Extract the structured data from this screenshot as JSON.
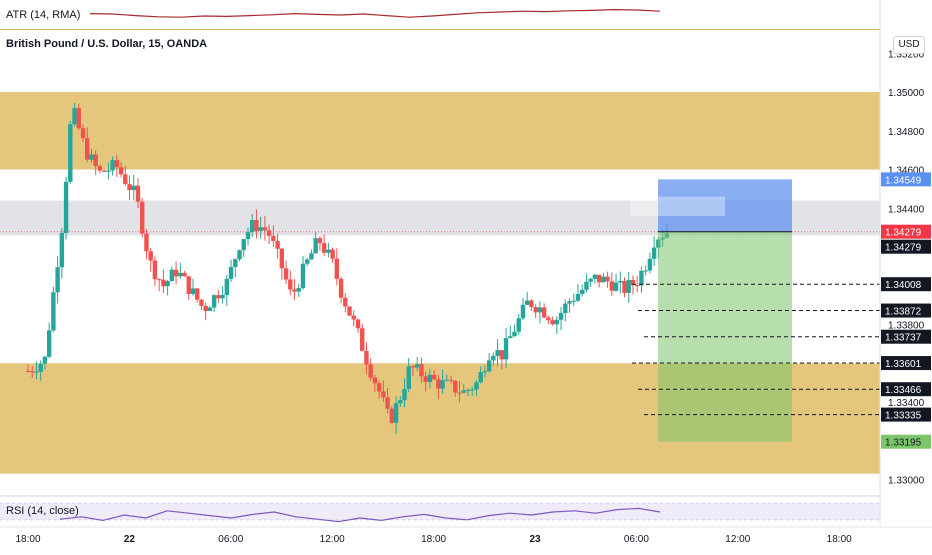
{
  "chart": {
    "symbol_title": "British Pound / U.S. Dollar, 15, OANDA",
    "currency": "USD",
    "atr_label": "ATR (14, RMA)",
    "rsi_label": "RSI (14, close)"
  },
  "colors": {
    "up": "#26a69a",
    "down": "#ef5350",
    "zone": "#d4a42b",
    "resistance_band": "#b2b5be",
    "stop_box": "#5b8ff0",
    "target_box": "#7cc56a",
    "atr_line": "#a52a2a",
    "rsi_line": "#7e57c2",
    "current_price": "#f23645"
  },
  "chart_data": {
    "type": "candlestick",
    "title": "British Pound / U.S. Dollar, 15, OANDA",
    "ylim": [
      1.3292,
      1.3532
    ],
    "y_ticks": [
      "1.35200",
      "1.35000",
      "1.34800",
      "1.34600",
      "1.34400",
      "1.33800",
      "1.33400",
      "1.33000"
    ],
    "x_ticks": [
      "18:00",
      "22",
      "06:00",
      "12:00",
      "18:00",
      "23",
      "06:00",
      "12:00",
      "18:00"
    ],
    "x_tick_times": [
      0,
      6,
      12,
      18,
      24,
      30,
      36,
      42,
      48
    ],
    "bar_minutes": 15,
    "ohlc_path": [
      [
        0,
        1.3356
      ],
      [
        1,
        1.3362
      ],
      [
        2,
        1.343
      ],
      [
        2.6,
        1.3492
      ],
      [
        3.4,
        1.347
      ],
      [
        4.2,
        1.3458
      ],
      [
        5.2,
        1.3462
      ],
      [
        6.4,
        1.3446
      ],
      [
        7.2,
        1.3412
      ],
      [
        8.0,
        1.34
      ],
      [
        8.8,
        1.3408
      ],
      [
        9.6,
        1.3398
      ],
      [
        10.4,
        1.3388
      ],
      [
        11.0,
        1.3394
      ],
      [
        11.8,
        1.3402
      ],
      [
        12.6,
        1.3424
      ],
      [
        13.4,
        1.3432
      ],
      [
        14.2,
        1.3428
      ],
      [
        15.0,
        1.341
      ],
      [
        15.6,
        1.3394
      ],
      [
        16.4,
        1.341
      ],
      [
        17.2,
        1.3424
      ],
      [
        18.0,
        1.3412
      ],
      [
        18.6,
        1.3395
      ],
      [
        19.4,
        1.3378
      ],
      [
        20.2,
        1.3358
      ],
      [
        20.8,
        1.3345
      ],
      [
        21.4,
        1.333
      ],
      [
        22.0,
        1.3342
      ],
      [
        22.6,
        1.3358
      ],
      [
        23.4,
        1.3354
      ],
      [
        24.2,
        1.335
      ],
      [
        25.0,
        1.3348
      ],
      [
        25.8,
        1.3345
      ],
      [
        26.6,
        1.335
      ],
      [
        27.4,
        1.3368
      ],
      [
        28.0,
        1.3364
      ],
      [
        28.8,
        1.3378
      ],
      [
        29.6,
        1.3392
      ],
      [
        30.4,
        1.3388
      ],
      [
        31.2,
        1.3382
      ],
      [
        32.0,
        1.3392
      ],
      [
        32.8,
        1.3398
      ],
      [
        33.6,
        1.3404
      ],
      [
        34.4,
        1.3402
      ],
      [
        35.2,
        1.3398
      ],
      [
        36.0,
        1.3402
      ],
      [
        36.6,
        1.3412
      ],
      [
        37.1,
        1.3425
      ],
      [
        37.8,
        1.3428
      ]
    ],
    "candle_count": 152,
    "current_price": 1.34279,
    "zones": [
      {
        "name": "supply",
        "from": 1.346,
        "to": 1.35
      },
      {
        "name": "resistance-band",
        "from": 1.3426,
        "to": 1.3444
      },
      {
        "name": "demand",
        "from": 1.3303,
        "to": 1.336
      }
    ],
    "position": {
      "side": "short",
      "entry": 1.34279,
      "stop": 1.34549,
      "target": 1.33195
    },
    "price_levels": [
      {
        "value": "1.34549",
        "style": "blue"
      },
      {
        "value": "1.34279",
        "style": "red"
      },
      {
        "value": "1.34279",
        "style": "black"
      },
      {
        "value": "1.34008",
        "style": "black"
      },
      {
        "value": "1.33872",
        "style": "black"
      },
      {
        "value": "1.33737",
        "style": "black"
      },
      {
        "value": "1.33601",
        "style": "black"
      },
      {
        "value": "1.33466",
        "style": "black"
      },
      {
        "value": "1.33335",
        "style": "black"
      },
      {
        "value": "1.33195",
        "style": "green"
      }
    ],
    "dashed_levels": [
      1.34008,
      1.33872,
      1.33737,
      1.33601,
      1.33466,
      1.33335
    ],
    "atr_series": [
      0.62,
      0.6,
      0.52,
      0.46,
      0.44,
      0.5,
      0.48,
      0.52,
      0.56,
      0.62,
      0.58,
      0.55,
      0.6,
      0.52,
      0.44,
      0.5,
      0.58,
      0.66,
      0.7,
      0.74,
      0.72,
      0.76,
      0.78,
      0.82,
      0.8,
      0.74
    ],
    "rsi_series": [
      48,
      52,
      46,
      55,
      50,
      62,
      58,
      54,
      50,
      56,
      60,
      52,
      48,
      44,
      50,
      46,
      52,
      56,
      50,
      47,
      54,
      58,
      55,
      60,
      62,
      58,
      64,
      66,
      60
    ]
  }
}
